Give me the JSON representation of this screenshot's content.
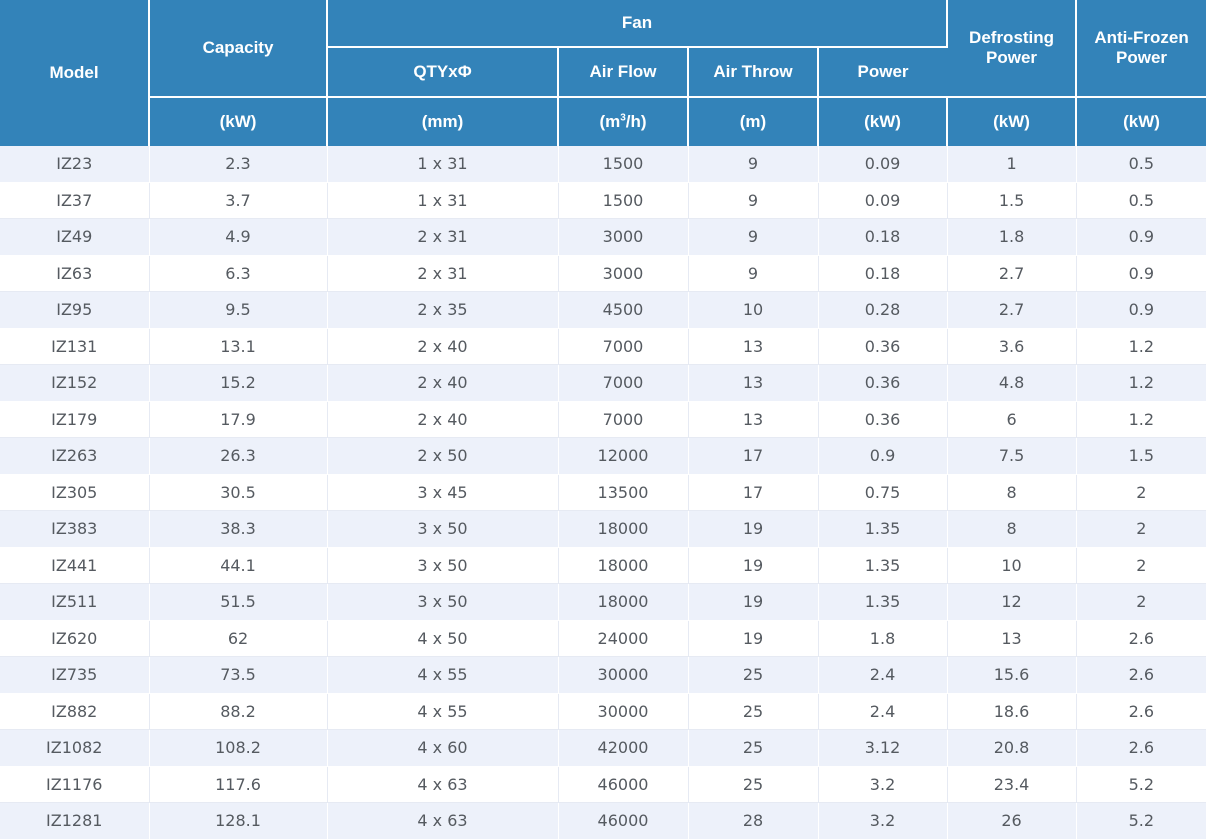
{
  "header": {
    "model": "Model",
    "capacity": "Capacity",
    "fan": "Fan",
    "qty": "QTYxΦ",
    "air_flow": "Air Flow",
    "air_throw": "Air Throw",
    "power": "Power",
    "defrost_1": "Defrosting",
    "defrost_2": "Power",
    "anti_1": "Anti-Frozen",
    "anti_2": "Power"
  },
  "units": {
    "capacity": "(kW)",
    "qty": "(mm)",
    "air_flow_pre": "(m",
    "air_flow_sup": "3",
    "air_flow_post": "/h)",
    "air_throw": "(m)",
    "power": "(kW)",
    "defrost": "(kW)",
    "anti": "(kW)"
  },
  "rows": [
    [
      "IZ23",
      "2.3",
      "1 x 31",
      "1500",
      "9",
      "0.09",
      "1",
      "0.5"
    ],
    [
      "IZ37",
      "3.7",
      "1 x 31",
      "1500",
      "9",
      "0.09",
      "1.5",
      "0.5"
    ],
    [
      "IZ49",
      "4.9",
      "2 x 31",
      "3000",
      "9",
      "0.18",
      "1.8",
      "0.9"
    ],
    [
      "IZ63",
      "6.3",
      "2 x 31",
      "3000",
      "9",
      "0.18",
      "2.7",
      "0.9"
    ],
    [
      "IZ95",
      "9.5",
      "2 x 35",
      "4500",
      "10",
      "0.28",
      "2.7",
      "0.9"
    ],
    [
      "IZ131",
      "13.1",
      "2 x 40",
      "7000",
      "13",
      "0.36",
      "3.6",
      "1.2"
    ],
    [
      "IZ152",
      "15.2",
      "2 x 40",
      "7000",
      "13",
      "0.36",
      "4.8",
      "1.2"
    ],
    [
      "IZ179",
      "17.9",
      "2 x 40",
      "7000",
      "13",
      "0.36",
      "6",
      "1.2"
    ],
    [
      "IZ263",
      "26.3",
      "2 x 50",
      "12000",
      "17",
      "0.9",
      "7.5",
      "1.5"
    ],
    [
      "IZ305",
      "30.5",
      "3 x 45",
      "13500",
      "17",
      "0.75",
      "8",
      "2"
    ],
    [
      "IZ383",
      "38.3",
      "3 x 50",
      "18000",
      "19",
      "1.35",
      "8",
      "2"
    ],
    [
      "IZ441",
      "44.1",
      "3 x 50",
      "18000",
      "19",
      "1.35",
      "10",
      "2"
    ],
    [
      "IZ511",
      "51.5",
      "3 x 50",
      "18000",
      "19",
      "1.35",
      "12",
      "2"
    ],
    [
      "IZ620",
      "62",
      "4 x 50",
      "24000",
      "19",
      "1.8",
      "13",
      "2.6"
    ],
    [
      "IZ735",
      "73.5",
      "4 x 55",
      "30000",
      "25",
      "2.4",
      "15.6",
      "2.6"
    ],
    [
      "IZ882",
      "88.2",
      "4 x 55",
      "30000",
      "25",
      "2.4",
      "18.6",
      "2.6"
    ],
    [
      "IZ1082",
      "108.2",
      "4 x 60",
      "42000",
      "25",
      "3.12",
      "20.8",
      "2.6"
    ],
    [
      "IZ1176",
      "117.6",
      "4 x 63",
      "46000",
      "25",
      "3.2",
      "23.4",
      "5.2"
    ],
    [
      "IZ1281",
      "128.1",
      "4 x 63",
      "46000",
      "28",
      "3.2",
      "26",
      "5.2"
    ]
  ]
}
